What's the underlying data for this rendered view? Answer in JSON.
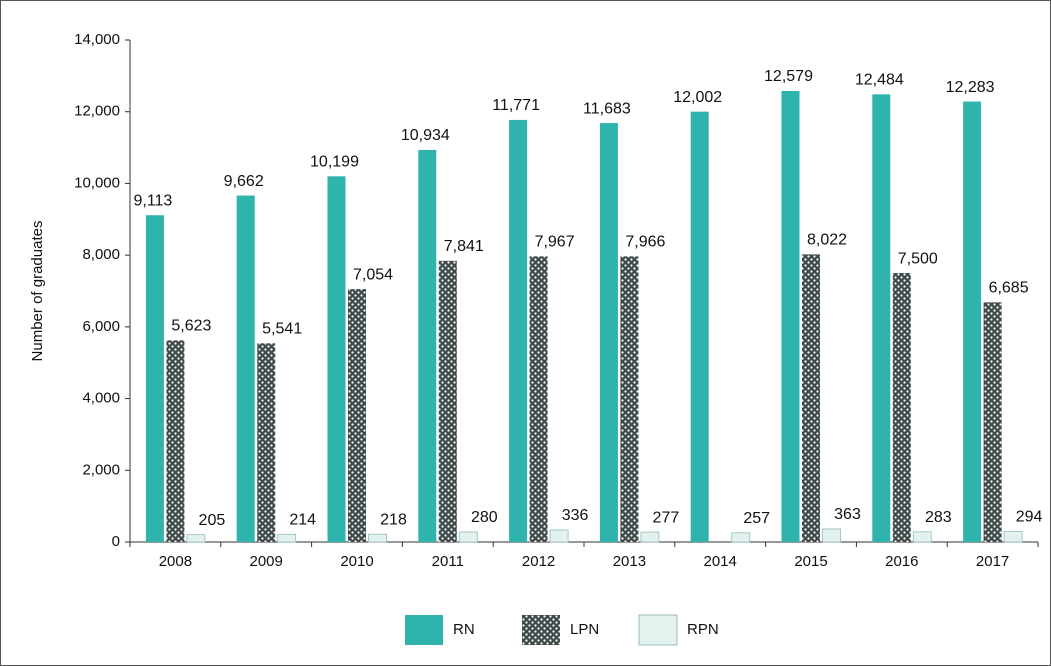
{
  "chart_data": {
    "type": "bar",
    "y_label": "Number of graduates",
    "categories": [
      "2008",
      "2009",
      "2010",
      "2011",
      "2012",
      "2013",
      "2014",
      "2015",
      "2016",
      "2017"
    ],
    "series": [
      {
        "name": "RN",
        "color": "#2fb3ad",
        "values": [
          9113,
          9662,
          10199,
          10934,
          11771,
          11683,
          12002,
          12579,
          12484,
          12283
        ],
        "value_labels": [
          "9,113",
          "9,662",
          "10,199",
          "10,934",
          "11,771",
          "11,683",
          "12,002",
          "12,579",
          "12,484",
          "12,283"
        ]
      },
      {
        "name": "LPN",
        "color": "#3e4a4a",
        "values": [
          5623,
          5541,
          7054,
          7841,
          7967,
          7966,
          null,
          8022,
          7500,
          6685
        ],
        "value_labels": [
          "5,623",
          "5,541",
          "7,054",
          "7,841",
          "7,967",
          "7,966",
          null,
          "8,022",
          "7,500",
          "6,685"
        ]
      },
      {
        "name": "RPN",
        "color": "#e2f2ee",
        "values": [
          205,
          214,
          218,
          280,
          336,
          277,
          257,
          363,
          283,
          294
        ]
      }
    ],
    "ylim": [
      0,
      14000
    ],
    "yticks": [
      0,
      {
        "value": 2000,
        "label": "2,000"
      },
      {
        "value": 4000,
        "label": "4,000"
      },
      {
        "value": 6000,
        "label": "6,000"
      },
      {
        "value": 8000,
        "label": "8,000"
      },
      {
        "value": 10000,
        "label": "10,000"
      },
      {
        "value": 12000,
        "label": "12,000"
      },
      {
        "value": 14000,
        "label": "14,000"
      }
    ],
    "legend": "bottom"
  }
}
